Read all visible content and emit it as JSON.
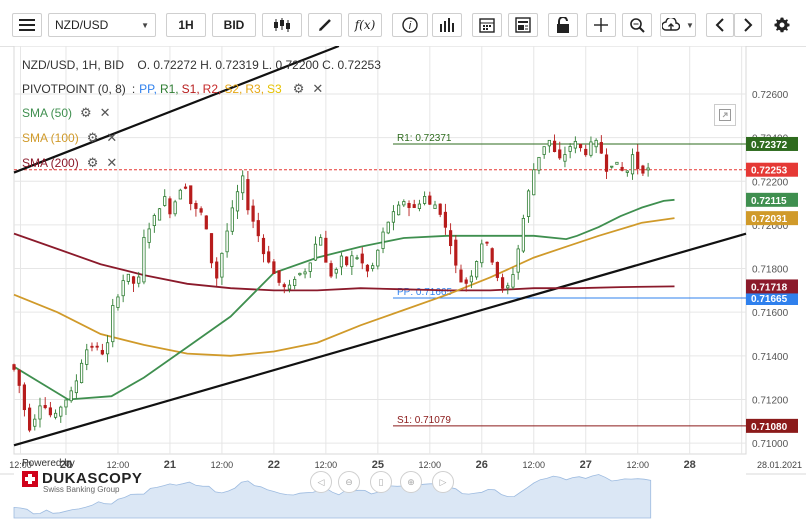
{
  "toolbar": {
    "symbol": "NZD/USD",
    "timeframe": "1H",
    "price_type": "BID",
    "icons": [
      "menu-icon",
      "candles-icon",
      "draw-pencil-icon",
      "function-icon",
      "info-icon",
      "volume-bars-icon",
      "calendar-icon",
      "news-icon",
      "lock-icon",
      "crosshair-icon",
      "zoom-icon",
      "upload-icon",
      "prev-arrow-icon",
      "next-arrow-icon",
      "settings-icon"
    ],
    "function_label": "f(x)"
  },
  "header": {
    "instrument": "NZD/USD, 1H, BID",
    "ohlc": "O. 0.72272  H. 0.72319  L. 0.72200  C. 0.72253"
  },
  "indicators": {
    "pivot": {
      "name": "PIVOTPOINT (0, 8)",
      "sep": ":",
      "levels": [
        "PP,",
        "R1,",
        "S1,",
        "R2,",
        "S2,",
        "R3,",
        "S3"
      ],
      "level_colors": [
        "#2f80ed",
        "#2e7d32",
        "#b71c1c",
        "#c62828",
        "#e6a817",
        "#e6a817",
        "#e6c200"
      ]
    },
    "sma50": {
      "name": "SMA (50)",
      "color": "#3f8f4f"
    },
    "sma100": {
      "name": "SMA (100)",
      "color": "#d09a2a"
    },
    "sma200": {
      "name": "SMA (200)",
      "color": "#8b1a2b"
    }
  },
  "colors": {
    "up": "#2e7d32",
    "down": "#b71c1c",
    "accent": "#e53935",
    "grid": "#e6e6e6",
    "trendline": "#111111"
  },
  "brand": {
    "powered": "Powered by",
    "name": "DUKASCOPY",
    "sub": "Swiss Banking Group"
  },
  "chart_data": {
    "type": "candlestick",
    "symbol": "NZD/USD",
    "timeframe": "1H",
    "ylim": [
      0.7095,
      0.7282
    ],
    "y_ticks": [
      "0.72600",
      "0.72400",
      "0.72200",
      "0.72000",
      "0.71800",
      "0.71600",
      "0.71400",
      "0.71200",
      "0.71000"
    ],
    "x_labels": [
      "12:00",
      "20",
      "12:00",
      "21",
      "12:00",
      "22",
      "12:00",
      "25",
      "12:00",
      "26",
      "12:00",
      "27",
      "12:00",
      "28",
      "28.01.2021"
    ],
    "x_label_slots": [
      3,
      24,
      48,
      72,
      96,
      120,
      144,
      168,
      192,
      216,
      240,
      264,
      288,
      312,
      336
    ],
    "n_slots": 338,
    "current_price": {
      "value": 0.72253,
      "label": "0.72253"
    },
    "pivot_levels": [
      {
        "name": "R1",
        "value": 0.72371,
        "label": "R1: 0.72371",
        "badge": "0.72372",
        "color": "#2e6b1e",
        "from_slot": 175
      },
      {
        "name": "PP",
        "value": 0.71665,
        "label": "PP: 0.71665",
        "badge": "0.71665",
        "color": "#2f80ed",
        "from_slot": 175
      },
      {
        "name": "S1",
        "value": 0.71079,
        "label": "S1: 0.71079",
        "badge": "0.71080",
        "color": "#8b1a1a",
        "from_slot": 175
      }
    ],
    "badges": [
      {
        "label": "0.72115",
        "value": 0.72115,
        "color": "#3f8f4f"
      },
      {
        "label": "0.72031",
        "value": 0.72031,
        "color": "#d09a2a"
      },
      {
        "label": "0.71718",
        "value": 0.71718,
        "color": "#8b1a2b"
      }
    ],
    "trendlines": [
      {
        "from": [
          0,
          0.7099
        ],
        "to": [
          338,
          0.7196
        ]
      },
      {
        "from": [
          0,
          0.7224
        ],
        "to": [
          150,
          0.7282
        ]
      }
    ],
    "sma50": [
      [
        0,
        0.7135
      ],
      [
        25,
        0.712
      ],
      [
        45,
        0.71215
      ],
      [
        60,
        0.713
      ],
      [
        80,
        0.7144
      ],
      [
        100,
        0.7158
      ],
      [
        120,
        0.7178
      ],
      [
        140,
        0.7185
      ],
      [
        160,
        0.719
      ],
      [
        180,
        0.7194
      ],
      [
        200,
        0.7195
      ],
      [
        220,
        0.7195
      ],
      [
        240,
        0.7195
      ],
      [
        255,
        0.71935
      ],
      [
        260,
        0.7195
      ],
      [
        270,
        0.7199
      ],
      [
        280,
        0.7204
      ],
      [
        290,
        0.7208
      ],
      [
        300,
        0.7211
      ],
      [
        305,
        0.72115
      ]
    ],
    "sma100": [
      [
        0,
        0.7168
      ],
      [
        20,
        0.716
      ],
      [
        40,
        0.715
      ],
      [
        60,
        0.7145
      ],
      [
        80,
        0.7141
      ],
      [
        100,
        0.714
      ],
      [
        120,
        0.7142
      ],
      [
        140,
        0.7146
      ],
      [
        160,
        0.7154
      ],
      [
        180,
        0.7161
      ],
      [
        200,
        0.7168
      ],
      [
        220,
        0.7176
      ],
      [
        240,
        0.7185
      ],
      [
        255,
        0.719
      ],
      [
        270,
        0.7195
      ],
      [
        290,
        0.7201
      ],
      [
        305,
        0.72031
      ]
    ],
    "sma200": [
      [
        0,
        0.7196
      ],
      [
        20,
        0.7189
      ],
      [
        40,
        0.7182
      ],
      [
        60,
        0.7177
      ],
      [
        80,
        0.7173
      ],
      [
        100,
        0.7171
      ],
      [
        120,
        0.717
      ],
      [
        140,
        0.717
      ],
      [
        160,
        0.7171
      ],
      [
        180,
        0.71705
      ],
      [
        200,
        0.717
      ],
      [
        220,
        0.717
      ],
      [
        240,
        0.7171
      ],
      [
        260,
        0.7171
      ],
      [
        280,
        0.71715
      ],
      [
        305,
        0.71718
      ]
    ],
    "price_path": [
      [
        0,
        0.7136
      ],
      [
        3,
        0.7133
      ],
      [
        6,
        0.7122
      ],
      [
        9,
        0.7106
      ],
      [
        12,
        0.7112
      ],
      [
        15,
        0.712
      ],
      [
        18,
        0.7114
      ],
      [
        21,
        0.7111
      ],
      [
        24,
        0.7117
      ],
      [
        27,
        0.7121
      ],
      [
        30,
        0.7124
      ],
      [
        33,
        0.7136
      ],
      [
        36,
        0.7143
      ],
      [
        39,
        0.7145
      ],
      [
        42,
        0.7142
      ],
      [
        45,
        0.7141
      ],
      [
        48,
        0.7162
      ],
      [
        51,
        0.717
      ],
      [
        54,
        0.7178
      ],
      [
        57,
        0.7173
      ],
      [
        60,
        0.7175
      ],
      [
        63,
        0.7198
      ],
      [
        66,
        0.72
      ],
      [
        69,
        0.7208
      ],
      [
        72,
        0.7212
      ],
      [
        75,
        0.7205
      ],
      [
        78,
        0.7215
      ],
      [
        81,
        0.722
      ],
      [
        84,
        0.721
      ],
      [
        87,
        0.7206
      ],
      [
        90,
        0.7205
      ],
      [
        93,
        0.7185
      ],
      [
        96,
        0.7176
      ],
      [
        99,
        0.719
      ],
      [
        102,
        0.7202
      ],
      [
        105,
        0.7213
      ],
      [
        108,
        0.7221
      ],
      [
        111,
        0.7205
      ],
      [
        114,
        0.72
      ],
      [
        117,
        0.7188
      ],
      [
        120,
        0.7184
      ],
      [
        123,
        0.7176
      ],
      [
        126,
        0.7172
      ],
      [
        129,
        0.717
      ],
      [
        132,
        0.7176
      ],
      [
        135,
        0.7178
      ],
      [
        138,
        0.718
      ],
      [
        141,
        0.719
      ],
      [
        144,
        0.7195
      ],
      [
        147,
        0.7179
      ],
      [
        150,
        0.7176
      ],
      [
        153,
        0.7185
      ],
      [
        156,
        0.7182
      ],
      [
        159,
        0.7186
      ],
      [
        162,
        0.7185
      ],
      [
        165,
        0.7178
      ],
      [
        168,
        0.7181
      ],
      [
        171,
        0.719
      ],
      [
        174,
        0.72
      ],
      [
        177,
        0.7204
      ],
      [
        180,
        0.7208
      ],
      [
        183,
        0.7212
      ],
      [
        186,
        0.7206
      ],
      [
        189,
        0.721
      ],
      [
        192,
        0.7213
      ],
      [
        195,
        0.7208
      ],
      [
        198,
        0.721
      ],
      [
        201,
        0.72
      ],
      [
        204,
        0.7192
      ],
      [
        207,
        0.7178
      ],
      [
        210,
        0.7172
      ],
      [
        213,
        0.7176
      ],
      [
        216,
        0.7184
      ],
      [
        219,
        0.7194
      ],
      [
        222,
        0.7188
      ],
      [
        225,
        0.7178
      ],
      [
        228,
        0.717
      ],
      [
        231,
        0.7172
      ],
      [
        234,
        0.7182
      ],
      [
        237,
        0.72
      ],
      [
        240,
        0.7215
      ],
      [
        243,
        0.7228
      ],
      [
        246,
        0.7234
      ],
      [
        249,
        0.724
      ],
      [
        252,
        0.7233
      ],
      [
        255,
        0.7229
      ],
      [
        258,
        0.7235
      ],
      [
        261,
        0.7238
      ],
      [
        264,
        0.7235
      ],
      [
        267,
        0.7233
      ],
      [
        270,
        0.7239
      ],
      [
        273,
        0.7235
      ],
      [
        276,
        0.7226
      ],
      [
        279,
        0.7229
      ],
      [
        282,
        0.7226
      ],
      [
        285,
        0.7223
      ],
      [
        288,
        0.7232
      ],
      [
        291,
        0.7225
      ],
      [
        294,
        0.72253
      ]
    ]
  }
}
